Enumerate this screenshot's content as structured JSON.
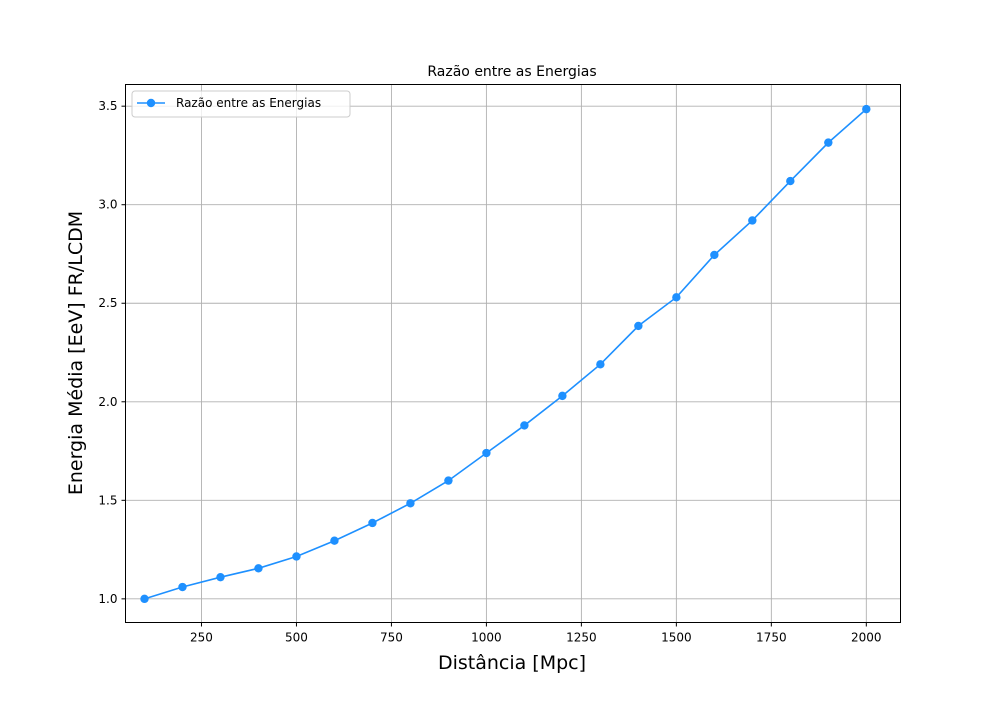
{
  "chart_data": {
    "type": "line",
    "title": "Razão entre as Energias",
    "xlabel": "Distância [Mpc]",
    "ylabel": "Energia Média [EeV] FR/LCDM",
    "xlim": [
      50,
      2090
    ],
    "ylim": [
      0.88,
      3.61
    ],
    "xticks": [
      250,
      500,
      750,
      1000,
      1250,
      1500,
      1750,
      2000
    ],
    "yticks": [
      1.0,
      1.5,
      2.0,
      2.5,
      3.0,
      3.5
    ],
    "grid": true,
    "legend_position": "upper-left",
    "series": [
      {
        "name": "Razão entre as Energias",
        "color": "#1e90ff",
        "marker": "circle",
        "x": [
          100,
          200,
          300,
          400,
          500,
          600,
          700,
          800,
          900,
          1000,
          1100,
          1200,
          1300,
          1400,
          1500,
          1600,
          1700,
          1800,
          1900,
          2000
        ],
        "y": [
          1.0,
          1.06,
          1.11,
          1.155,
          1.215,
          1.295,
          1.385,
          1.485,
          1.6,
          1.74,
          1.88,
          2.03,
          2.19,
          2.385,
          2.53,
          2.745,
          2.92,
          3.12,
          3.315,
          3.485
        ]
      }
    ]
  }
}
